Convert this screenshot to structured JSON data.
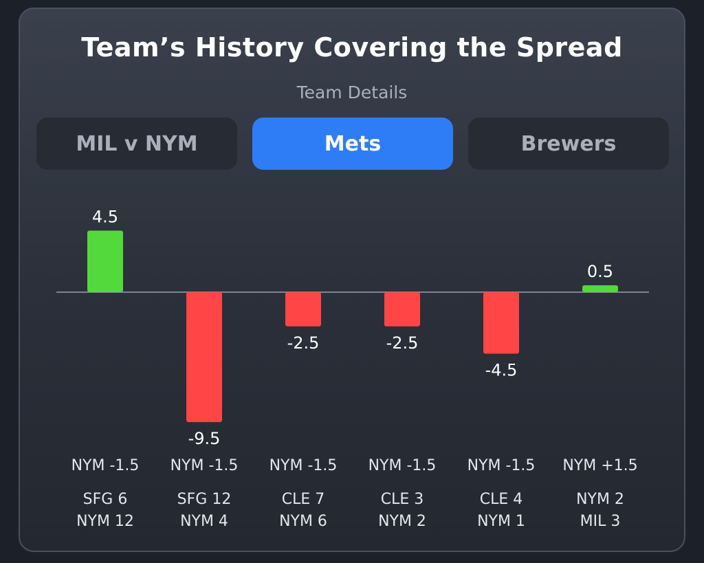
{
  "title": "Team’s History Covering the Spread",
  "subtitle": "Team Details",
  "tabs": [
    {
      "label": "MIL v NYM",
      "active": false
    },
    {
      "label": "Mets",
      "active": true
    },
    {
      "label": "Brewers",
      "active": false
    }
  ],
  "colors": {
    "positive": "#53d93c",
    "negative": "#ff4545",
    "accent": "#2f7df6"
  },
  "chart_data": {
    "type": "bar",
    "values": [
      4.5,
      -9.5,
      -2.5,
      -2.5,
      -4.5,
      0.5
    ],
    "value_labels": [
      "4.5",
      "-9.5",
      "-2.5",
      "-2.5",
      "-4.5",
      "0.5"
    ],
    "spreads": [
      "NYM -1.5",
      "NYM -1.5",
      "NYM -1.5",
      "NYM -1.5",
      "NYM -1.5",
      "NYM +1.5"
    ],
    "scores": [
      [
        "SFG 6",
        "NYM 12"
      ],
      [
        "SFG 12",
        "NYM 4"
      ],
      [
        "CLE 7",
        "NYM 6"
      ],
      [
        "CLE 3",
        "NYM 2"
      ],
      [
        "CLE 4",
        "NYM 1"
      ],
      [
        "NYM 2",
        "MIL 3"
      ]
    ],
    "ylim": [
      -9.5,
      4.5
    ]
  }
}
